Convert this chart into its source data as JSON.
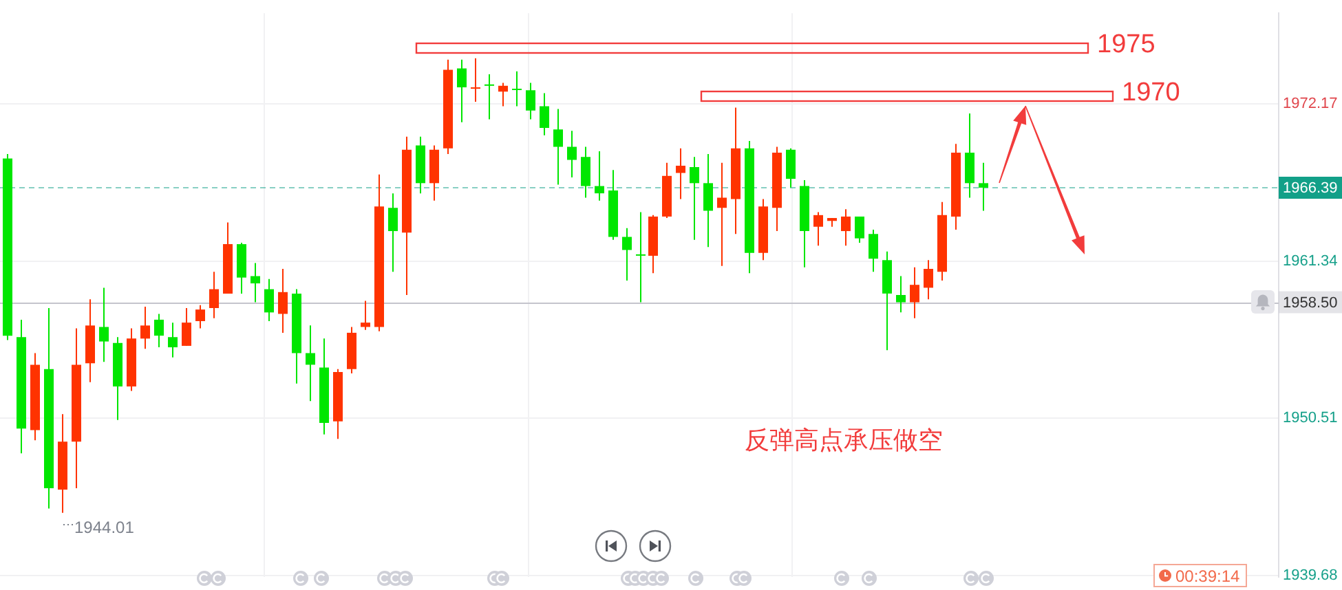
{
  "chart_data": {
    "type": "candlestick",
    "categories": [
      null,
      null,
      null,
      null,
      null,
      null,
      null,
      null,
      null,
      null,
      null,
      null,
      null,
      null,
      null,
      null,
      null,
      null,
      null,
      null,
      null,
      null,
      null,
      null,
      null,
      null,
      null,
      null,
      null,
      null,
      null,
      null,
      null,
      null,
      null,
      null,
      null,
      null,
      null,
      null,
      null,
      null,
      null,
      null,
      null,
      null,
      null,
      null,
      null,
      null,
      null,
      null,
      null,
      null,
      null,
      null,
      null,
      null,
      null,
      null,
      null,
      null,
      null,
      null,
      null,
      null,
      null,
      null,
      null,
      null,
      null,
      null,
      null,
      null,
      null,
      null,
      null,
      null,
      null,
      null,
      null,
      null,
      null,
      null,
      null,
      null,
      null,
      null,
      null,
      null,
      null,
      null,
      null
    ],
    "ohlc": [
      [
        1968.4,
        1968.7,
        1955.9,
        1956.2
      ],
      [
        1956.1,
        1957.3,
        1948.1,
        1949.8
      ],
      [
        1949.7,
        1955.0,
        1949.0,
        1954.2
      ],
      [
        1953.9,
        1958.1,
        1944.3,
        1945.7
      ],
      [
        1945.6,
        1950.8,
        1944.01,
        1948.9
      ],
      [
        1948.9,
        1956.7,
        1945.7,
        1954.2
      ],
      [
        1954.3,
        1958.7,
        1953.0,
        1956.9
      ],
      [
        1956.8,
        1959.5,
        1954.4,
        1955.8
      ],
      [
        1955.7,
        1956.1,
        1950.4,
        1952.7
      ],
      [
        1952.7,
        1956.7,
        1952.4,
        1956.0
      ],
      [
        1956.0,
        1958.2,
        1955.3,
        1956.9
      ],
      [
        1957.3,
        1957.7,
        1955.4,
        1956.2
      ],
      [
        1956.1,
        1957.1,
        1954.7,
        1955.4
      ],
      [
        1955.5,
        1958.1,
        1955.5,
        1957.1
      ],
      [
        1957.2,
        1958.3,
        1956.7,
        1958.0
      ],
      [
        1958.1,
        1960.6,
        1957.4,
        1959.4
      ],
      [
        1959.1,
        1964.0,
        1959.1,
        1962.5
      ],
      [
        1962.5,
        1962.6,
        1959.1,
        1960.2
      ],
      [
        1960.3,
        1961.2,
        1958.5,
        1959.8
      ],
      [
        1959.4,
        1960.1,
        1957.2,
        1957.8
      ],
      [
        1957.7,
        1960.8,
        1956.4,
        1959.2
      ],
      [
        1959.1,
        1959.4,
        1952.9,
        1955.0
      ],
      [
        1955.0,
        1956.9,
        1951.7,
        1954.2
      ],
      [
        1954.0,
        1956.0,
        1949.4,
        1950.2
      ],
      [
        1950.3,
        1953.9,
        1949.1,
        1953.7
      ],
      [
        1953.9,
        1956.8,
        1953.6,
        1956.4
      ],
      [
        1956.8,
        1958.6,
        1956.6,
        1957.1
      ],
      [
        1956.8,
        1967.3,
        1956.5,
        1965.1
      ],
      [
        1965.0,
        1966.0,
        1960.6,
        1963.4
      ],
      [
        1963.3,
        1969.9,
        1959.0,
        1969.0
      ],
      [
        1969.3,
        1969.9,
        1966.0,
        1966.7
      ],
      [
        1966.7,
        1969.3,
        1965.5,
        1969.0
      ],
      [
        1969.1,
        1975.2,
        1968.7,
        1974.5
      ],
      [
        1974.6,
        1975.2,
        1970.9,
        1973.3
      ],
      [
        1973.3,
        1975.3,
        1972.3,
        1973.3
      ],
      [
        1973.5,
        1974.2,
        1971.1,
        1973.4
      ],
      [
        1973.0,
        1973.6,
        1972.0,
        1973.4
      ],
      [
        1973.2,
        1974.4,
        1972.0,
        1973.2
      ],
      [
        1973.1,
        1973.6,
        1971.1,
        1971.7
      ],
      [
        1972.0,
        1972.9,
        1970.0,
        1970.5
      ],
      [
        1970.4,
        1971.8,
        1966.6,
        1969.2
      ],
      [
        1969.2,
        1970.3,
        1967.1,
        1968.3
      ],
      [
        1968.5,
        1969.2,
        1965.7,
        1966.5
      ],
      [
        1966.5,
        1968.9,
        1965.5,
        1966.0
      ],
      [
        1966.2,
        1967.6,
        1962.8,
        1963.0
      ],
      [
        1963.0,
        1963.6,
        1960.0,
        1962.1
      ],
      [
        1961.8,
        1964.7,
        1958.5,
        1961.8
      ],
      [
        1961.7,
        1964.5,
        1960.5,
        1964.4
      ],
      [
        1964.4,
        1968.1,
        1964.3,
        1967.2
      ],
      [
        1967.4,
        1969.1,
        1965.6,
        1967.9
      ],
      [
        1967.8,
        1968.5,
        1962.8,
        1966.7
      ],
      [
        1966.7,
        1968.7,
        1962.3,
        1964.8
      ],
      [
        1965.0,
        1968.1,
        1961.0,
        1965.7
      ],
      [
        1965.6,
        1971.9,
        1963.2,
        1969.1
      ],
      [
        1969.1,
        1969.6,
        1960.5,
        1961.9
      ],
      [
        1961.9,
        1965.6,
        1961.4,
        1965.1
      ],
      [
        1965.0,
        1969.2,
        1963.4,
        1968.8
      ],
      [
        1969.0,
        1969.1,
        1966.4,
        1967.0
      ],
      [
        1966.5,
        1966.9,
        1960.9,
        1963.4
      ],
      [
        1963.7,
        1964.7,
        1962.4,
        1964.5
      ],
      [
        1964.1,
        1964.3,
        1963.7,
        1964.3
      ],
      [
        1963.4,
        1964.9,
        1962.4,
        1964.4
      ],
      [
        1964.4,
        1964.4,
        1962.6,
        1962.9
      ],
      [
        1963.2,
        1963.5,
        1960.6,
        1961.5
      ],
      [
        1961.4,
        1962.0,
        1955.2,
        1959.1
      ],
      [
        1959.0,
        1960.3,
        1957.8,
        1958.5
      ],
      [
        1958.5,
        1960.9,
        1957.4,
        1959.7
      ],
      [
        1959.5,
        1961.4,
        1958.7,
        1960.8
      ],
      [
        1960.6,
        1965.4,
        1960.0,
        1964.5
      ],
      [
        1964.4,
        1969.4,
        1963.5,
        1968.8
      ],
      [
        1968.8,
        1971.5,
        1965.7,
        1966.7
      ],
      [
        1966.7,
        1968.1,
        1964.8,
        1966.39
      ],
      null,
      null,
      null,
      null,
      null,
      null,
      null,
      null,
      null,
      null,
      null,
      null,
      null,
      null,
      null,
      null,
      null,
      null,
      null,
      null,
      null
    ],
    "colors": [
      "#00e600",
      "#00e600",
      "#ff3300",
      "#00e600",
      "#ff3300",
      "#ff3300",
      "#ff3300",
      "#00e600",
      "#00e600",
      "#ff3300",
      "#ff3300",
      "#00e600",
      "#00e600",
      "#ff3300",
      "#ff3300",
      "#ff3300",
      "#ff3300",
      "#00e600",
      "#00e600",
      "#00e600",
      "#ff3300",
      "#00e600",
      "#00e600",
      "#00e600",
      "#ff3300",
      "#ff3300",
      "#ff3300",
      "#ff3300",
      "#00e600",
      "#ff3300",
      "#00e600",
      "#ff3300",
      "#ff3300",
      "#00e600",
      "#ff3300",
      "#00e600",
      "#ff3300",
      "#00e600",
      "#00e600",
      "#00e600",
      "#00e600",
      "#00e600",
      "#00e600",
      "#00e600",
      "#00e600",
      "#00e600",
      "#00e600",
      "#ff3300",
      "#ff3300",
      "#ff3300",
      "#00e600",
      "#00e600",
      "#ff3300",
      "#ff3300",
      "#00e600",
      "#ff3300",
      "#ff3300",
      "#00e600",
      "#00e600",
      "#ff3300",
      "#ff3300",
      "#ff3300",
      "#00e600",
      "#00e600",
      "#00e600",
      "#00e600",
      "#ff3300",
      "#ff3300",
      "#ff3300",
      "#ff3300",
      "#00e600",
      "#00e600",
      null,
      null,
      null,
      null,
      null,
      null,
      null,
      null,
      null,
      null,
      null,
      null,
      null,
      null,
      null,
      null,
      null,
      null,
      null,
      null,
      null
    ],
    "ylim": [
      1939.6,
      1978.4
    ],
    "yticks": [
      1972.17,
      1961.34,
      1950.51,
      1939.68
    ],
    "grid": true,
    "tick_labels": "y",
    "ref_lines": [
      {
        "axis": "y",
        "value": 1966.39,
        "label": "1966.39",
        "color": "#12a088",
        "line_style": "dashed"
      },
      {
        "axis": "y",
        "value": 1958.5,
        "label": "1958.50",
        "color": "#c4c4cc"
      }
    ],
    "annotations": [
      "1975",
      "1970",
      "反弹高点承压做空",
      "1944.01",
      "00:39:14"
    ]
  }
}
